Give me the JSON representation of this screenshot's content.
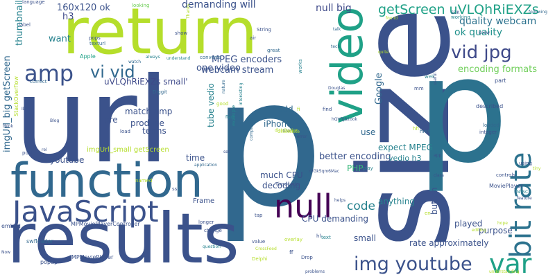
{
  "palette": {
    "dark_purple": "#440154",
    "indigo": "#3b528b",
    "slate_blue": "#31688e",
    "teal": "#21918c",
    "green_teal": "#1fa187",
    "green": "#35b779",
    "light_green": "#6ece58",
    "lime": "#b5de2b",
    "yellow": "#fde725"
  },
  "words": [
    {
      "text": "url",
      "color": "#3b528b"
    },
    {
      "text": "p",
      "color": "#31688e"
    },
    {
      "text": "size",
      "color": "#3b528b"
    },
    {
      "text": "return",
      "color": "#b5de2b"
    },
    {
      "text": "p",
      "color": "#2c728e"
    },
    {
      "text": "results",
      "color": "#3b528b"
    },
    {
      "text": "function",
      "color": "#31688e"
    },
    {
      "text": "video",
      "color": "#1fa187"
    },
    {
      "text": "bit rate",
      "color": "#2c728e"
    },
    {
      "text": "JavaScript",
      "color": "#3b528b"
    },
    {
      "text": "var",
      "color": "#1fa187"
    },
    {
      "text": "null",
      "color": "#440154"
    },
    {
      "text": "amp",
      "color": "#3b528b"
    },
    {
      "text": "img youtube",
      "color": "#3b528b"
    },
    {
      "text": "vid jpg",
      "color": "#3e4989"
    },
    {
      "text": "vi vid",
      "color": "#31688e"
    },
    {
      "text": "getScreen uVLQhRiEXZs",
      "color": "#1fa187"
    },
    {
      "text": "quality webcam",
      "color": "#2c728e"
    },
    {
      "text": "ok quality",
      "color": "#21918c"
    },
    {
      "text": "code",
      "color": "#26828e"
    },
    {
      "text": "demanding will",
      "color": "#3b528b"
    },
    {
      "text": "null big",
      "color": "#3e4989"
    },
    {
      "text": "160x120 ok",
      "color": "#3b528b"
    },
    {
      "text": "h3",
      "color": "#3e4989"
    },
    {
      "text": "want",
      "color": "#26828e"
    },
    {
      "text": "thumbnail",
      "color": "#26828e"
    },
    {
      "text": "imgUrl_big getScreen",
      "color": "#31688e"
    },
    {
      "text": "uVLQhRiEXZs small'",
      "color": "#3e4989"
    },
    {
      "text": "one video",
      "color": "#3b528b"
    },
    {
      "text": "MPEG encoders",
      "color": "#3b528b"
    },
    {
      "text": "webcam stream",
      "color": "#3b528b"
    },
    {
      "text": "encoding formats",
      "color": "#6ece58"
    },
    {
      "text": "Google",
      "color": "#31688e"
    },
    {
      "text": "match amp",
      "color": "#3b528b"
    },
    {
      "text": "produce",
      "color": "#3b528b"
    },
    {
      "text": "terms",
      "color": "#3b528b"
    },
    {
      "text": "pre",
      "color": "#3b528b"
    },
    {
      "text": "tube vedio",
      "color": "#26828e"
    },
    {
      "text": "add",
      "color": "#31688e"
    },
    {
      "text": "iPhone",
      "color": "#31688e"
    },
    {
      "text": "use",
      "color": "#31688e"
    },
    {
      "text": "expect MPEG",
      "color": "#26828e"
    },
    {
      "text": "better encoding",
      "color": "#3b528b"
    },
    {
      "text": "much CPU",
      "color": "#3b528b"
    },
    {
      "text": "PHP",
      "color": "#35b779"
    },
    {
      "text": "decoding",
      "color": "#3b528b"
    },
    {
      "text": "vedio h3",
      "color": "#26828e"
    },
    {
      "text": "anything",
      "color": "#26828e"
    },
    {
      "text": "button",
      "color": "#3b528b"
    },
    {
      "text": "played",
      "color": "#3b528b"
    },
    {
      "text": "purpose",
      "color": "#3b528b"
    },
    {
      "text": "rate approximately",
      "color": "#3b528b"
    },
    {
      "text": "small",
      "color": "#3b528b"
    },
    {
      "text": "CPU demanding",
      "color": "#3b528b"
    },
    {
      "text": "time",
      "color": "#3b528b"
    },
    {
      "text": "youtube",
      "color": "#3b528b"
    },
    {
      "text": "imgUrl_small getScreen",
      "color": "#b5de2b"
    },
    {
      "text": "Frame",
      "color": "#3b528b"
    },
    {
      "text": "MoviePlayer",
      "color": "#3b528b"
    },
    {
      "text": "MPMoviePlayerController",
      "color": "#3b528b"
    },
    {
      "text": "MPMoviePlayer",
      "color": "#3b528b"
    },
    {
      "text": "swfloader",
      "color": "#31688e"
    },
    {
      "text": "embed",
      "color": "#3b528b"
    },
    {
      "text": "popup",
      "color": "#3b528b"
    },
    {
      "text": "language",
      "color": "#3b528b"
    },
    {
      "text": "label",
      "color": "#3b528b"
    },
    {
      "text": "StackOverflow",
      "color": "#b5de2b"
    },
    {
      "text": "correct",
      "color": "#31688e"
    },
    {
      "text": "Apple",
      "color": "#1fa187"
    },
    {
      "text": "converts",
      "color": "#31688e"
    },
    {
      "text": "understand",
      "color": "#26828e"
    },
    {
      "text": "pops",
      "color": "#3b528b"
    },
    {
      "text": "texturl",
      "color": "#31688e"
    },
    {
      "text": "show",
      "color": "#3b528b"
    },
    {
      "text": "air",
      "color": "#3b528b"
    },
    {
      "text": "String",
      "color": "#3b528b"
    },
    {
      "text": "great",
      "color": "#31688e"
    },
    {
      "text": "works",
      "color": "#26828e"
    },
    {
      "text": "looking",
      "color": "#6ece58"
    },
    {
      "text": "Thanks",
      "color": "#b5de2b"
    },
    {
      "text": "always",
      "color": "#26828e"
    },
    {
      "text": "talk",
      "color": "#31688e"
    },
    {
      "text": "found",
      "color": "#b5de2b"
    },
    {
      "text": "working",
      "color": "#26828e"
    },
    {
      "text": "SDK",
      "color": "#3b528b"
    },
    {
      "text": "following",
      "color": "#31688e"
    },
    {
      "text": "know",
      "color": "#3b528b"
    },
    {
      "text": "well",
      "color": "#26828e"
    },
    {
      "text": "useful",
      "color": "#3b528b"
    },
    {
      "text": "part",
      "color": "#3b528b"
    },
    {
      "text": "described",
      "color": "#3b528b"
    },
    {
      "text": "loaded",
      "color": "#31688e"
    },
    {
      "text": "integer",
      "color": "#3b528b"
    },
    {
      "text": "controls",
      "color": "#3b528b"
    },
    {
      "text": "using",
      "color": "#3b528b"
    },
    {
      "text": "tiny",
      "color": "#b5de2b"
    },
    {
      "text": "feature",
      "color": "#3b528b"
    },
    {
      "text": "NTSC",
      "color": "#26828e"
    },
    {
      "text": "href",
      "color": "#31688e"
    },
    {
      "text": "app",
      "color": "#3b528b"
    },
    {
      "text": "play",
      "color": "#26828e"
    },
    {
      "text": "class",
      "color": "#3b528b"
    },
    {
      "text": "Timecode",
      "color": "#3b528b"
    },
    {
      "text": "helps",
      "color": "#3b528b"
    },
    {
      "text": "Drop",
      "color": "#3b528b"
    },
    {
      "text": "Delphi",
      "color": "#b5de2b"
    },
    {
      "text": "question",
      "color": "#26828e"
    },
    {
      "text": "change",
      "color": "#3b528b"
    },
    {
      "text": "longer",
      "color": "#3b528b"
    },
    {
      "text": "tap",
      "color": "#3b528b"
    },
    {
      "text": "value",
      "color": "#3b528b"
    },
    {
      "text": "overlay",
      "color": "#b5de2b"
    },
    {
      "text": "ff",
      "color": "#3b528b"
    },
    {
      "text": "hl",
      "color": "#3b528b"
    },
    {
      "text": "text",
      "color": "#26828e"
    },
    {
      "text": "problems",
      "color": "#3b528b"
    },
    {
      "text": "understanding",
      "color": "#b5de2b"
    },
    {
      "text": "ss",
      "color": "#3b528b"
    },
    {
      "text": "named",
      "color": "#b5de2b"
    },
    {
      "text": "application",
      "color": "#31688e"
    },
    {
      "text": "set",
      "color": "#3b528b"
    },
    {
      "text": "rVGk5qm6Mac",
      "color": "#3b528b"
    },
    {
      "text": "hQVfIJB2ook",
      "color": "#3b528b"
    },
    {
      "text": "error",
      "color": "#3b528b"
    },
    {
      "text": "find",
      "color": "#3b528b"
    },
    {
      "text": "link",
      "color": "#3b528b"
    },
    {
      "text": "Douglas",
      "color": "#3b528b"
    },
    {
      "text": "mm",
      "color": "#3b528b"
    },
    {
      "text": "example",
      "color": "#26828e"
    },
    {
      "text": "interesting",
      "color": "#26828e"
    },
    {
      "text": "good",
      "color": "#b5de2b"
    },
    {
      "text": "nature",
      "color": "#31688e"
    },
    {
      "text": "Diggit",
      "color": "#31688e"
    },
    {
      "text": "watch",
      "color": "#31688e"
    },
    {
      "text": "load",
      "color": "#3b528b"
    },
    {
      "text": "Blog",
      "color": "#3b528b"
    },
    {
      "text": "IDE",
      "color": "#3b528b"
    },
    {
      "text": "think",
      "color": "#3b528b"
    },
    {
      "text": "post",
      "color": "#3b528b"
    },
    {
      "text": "rel",
      "color": "#3b528b"
    },
    {
      "text": "Now",
      "color": "#3b528b"
    },
    {
      "text": "quite",
      "color": "#b5de2b"
    },
    {
      "text": "complaints",
      "color": "#31688e"
    },
    {
      "text": "GraceNote",
      "color": "#b5de2b"
    },
    {
      "text": "en",
      "color": "#b5de2b"
    },
    {
      "text": "editing",
      "color": "#b5de2b"
    },
    {
      "text": "hope",
      "color": "#b5de2b"
    },
    {
      "text": "hh",
      "color": "#b5de2b"
    },
    {
      "text": "fi",
      "color": "#b5de2b"
    },
    {
      "text": "CrossFeed",
      "color": "#b5de2b"
    },
    {
      "text": "distribution",
      "color": "#b5de2b"
    },
    {
      "text": "tech",
      "color": "#31688e"
    },
    {
      "text": "flash",
      "color": "#26828e"
    }
  ]
}
